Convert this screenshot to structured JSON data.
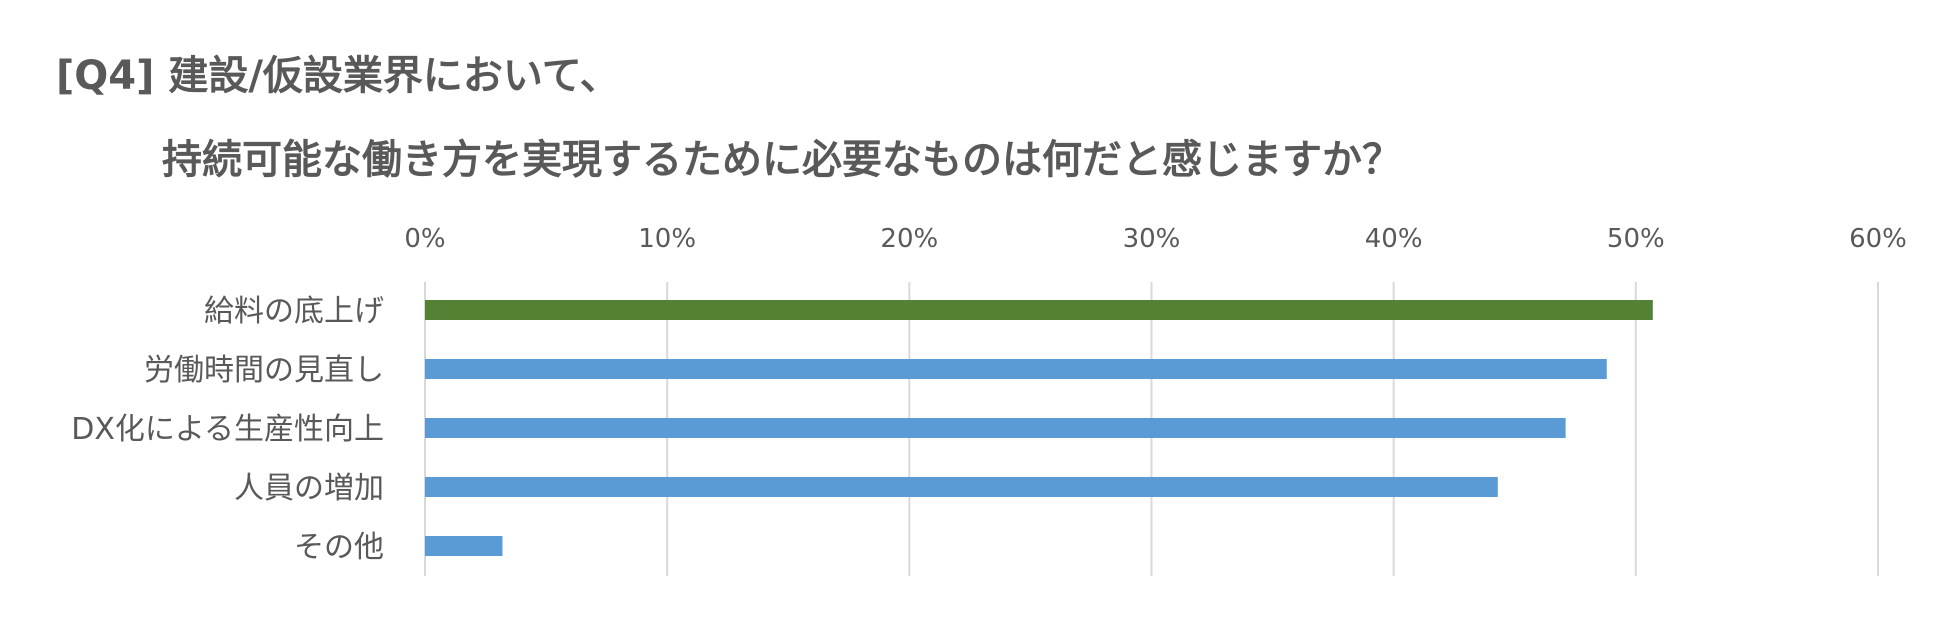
{
  "chart_data": {
    "type": "bar",
    "orientation": "horizontal",
    "title": "[Q4] 建設/仮設業界において、",
    "subtitle": "持続可能な働き方を実現するために必要なものは何だと感じますか？",
    "categories": [
      "給料の底上げ",
      "労働時間の見直し",
      "DX化による生産性向上",
      "人員の増加",
      "その他"
    ],
    "values": [
      50.7,
      48.8,
      47.1,
      44.3,
      3.2
    ],
    "unit": "%",
    "xlim": [
      0,
      60
    ],
    "ticks": [
      0,
      10,
      20,
      30,
      40,
      50,
      60
    ],
    "tick_labels": [
      "0%",
      "10%",
      "20%",
      "30%",
      "40%",
      "50%",
      "60%"
    ],
    "axis_position": "top",
    "grid": true,
    "highlight_index": 0,
    "colors": {
      "highlight": "#548235",
      "bar": "#5B9BD5",
      "grid": "#D9D9D9",
      "text": "#595959"
    }
  }
}
